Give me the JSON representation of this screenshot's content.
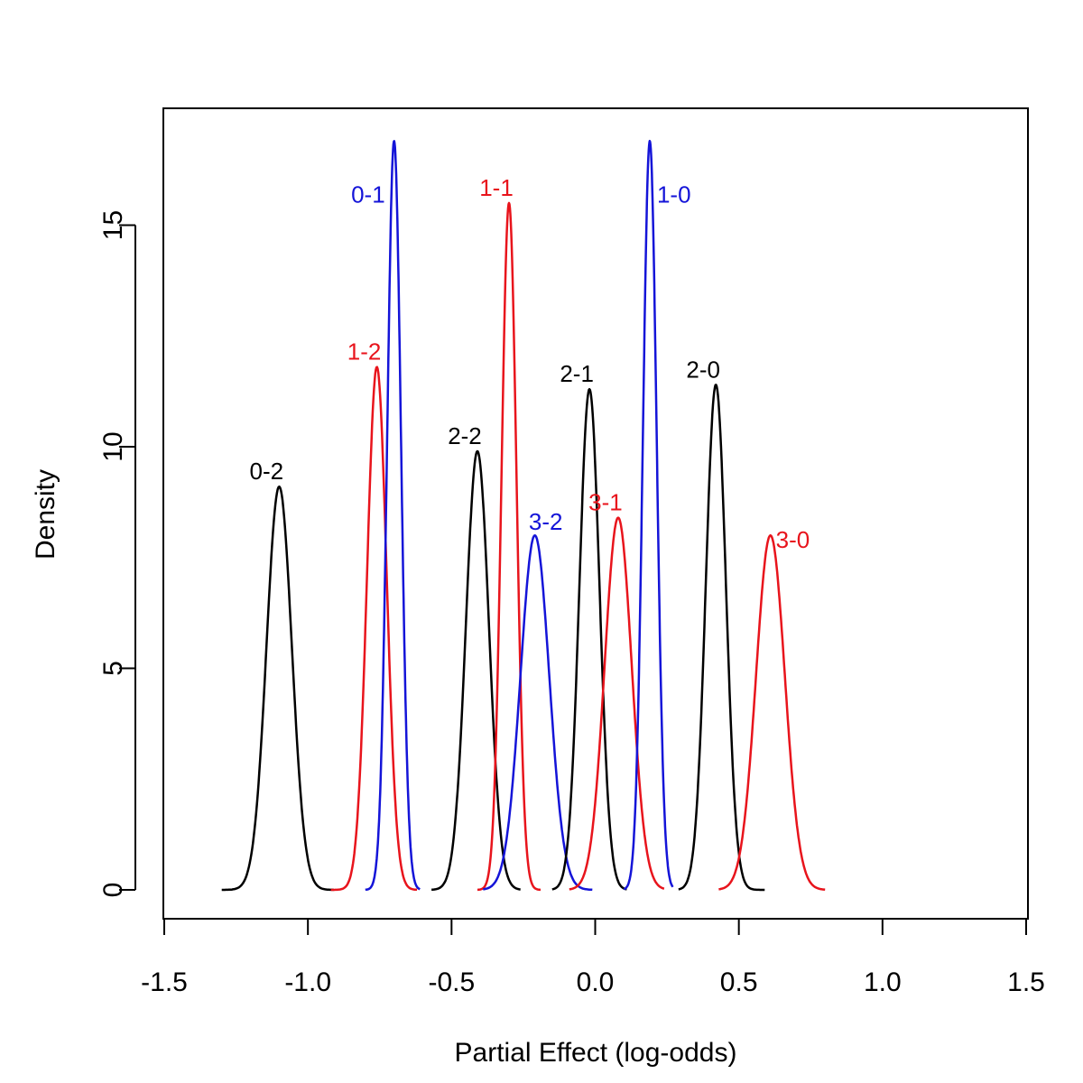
{
  "chart_data": {
    "type": "line",
    "title": "",
    "xlabel": "Partial Effect (log-odds)",
    "ylabel": "Density",
    "xlim": [
      -1.5,
      1.5
    ],
    "ylim": [
      0,
      17
    ],
    "x_ticks": [
      -1.5,
      -1.0,
      -0.5,
      0.0,
      0.5,
      1.0,
      1.5
    ],
    "x_tick_labels": [
      "-1.5",
      "-1.0",
      "-0.5",
      "0.0",
      "0.5",
      "1.0",
      "1.5"
    ],
    "y_ticks": [
      0,
      5,
      10,
      15
    ],
    "y_tick_labels": [
      "0",
      "5",
      "10",
      "15"
    ],
    "grid": false,
    "legend": "none",
    "colors": {
      "black": "#000000",
      "red": "#e8141c",
      "blue": "#1414d8"
    },
    "series": [
      {
        "name": "0-2",
        "color": "black",
        "mean": -1.1,
        "sd": 0.044,
        "peak": 9.1,
        "range": [
          -1.3,
          -0.91
        ]
      },
      {
        "name": "1-2",
        "color": "red",
        "mean": -0.76,
        "sd": 0.034,
        "peak": 11.8,
        "range": [
          -0.92,
          -0.62
        ]
      },
      {
        "name": "0-1",
        "color": "blue",
        "mean": -0.7,
        "sd": 0.024,
        "peak": 16.9,
        "range": [
          -0.8,
          -0.61
        ]
      },
      {
        "name": "2-2",
        "color": "black",
        "mean": -0.41,
        "sd": 0.04,
        "peak": 9.9,
        "range": [
          -0.57,
          -0.26
        ]
      },
      {
        "name": "1-1",
        "color": "red",
        "mean": -0.3,
        "sd": 0.026,
        "peak": 15.5,
        "range": [
          -0.41,
          -0.19
        ]
      },
      {
        "name": "3-2",
        "color": "blue",
        "mean": -0.21,
        "sd": 0.05,
        "peak": 8.0,
        "range": [
          -0.39,
          -0.01
        ]
      },
      {
        "name": "2-1",
        "color": "black",
        "mean": -0.02,
        "sd": 0.035,
        "peak": 11.3,
        "range": [
          -0.15,
          0.11
        ]
      },
      {
        "name": "3-1",
        "color": "red",
        "mean": 0.08,
        "sd": 0.047,
        "peak": 8.4,
        "range": [
          -0.09,
          0.24
        ]
      },
      {
        "name": "1-0",
        "color": "blue",
        "mean": 0.19,
        "sd": 0.024,
        "peak": 16.9,
        "range": [
          0.1,
          0.27
        ]
      },
      {
        "name": "2-0",
        "color": "black",
        "mean": 0.42,
        "sd": 0.035,
        "peak": 11.4,
        "range": [
          0.29,
          0.59
        ]
      },
      {
        "name": "3-0",
        "color": "red",
        "mean": 0.61,
        "sd": 0.05,
        "peak": 8.0,
        "range": [
          0.43,
          0.8
        ]
      }
    ]
  }
}
